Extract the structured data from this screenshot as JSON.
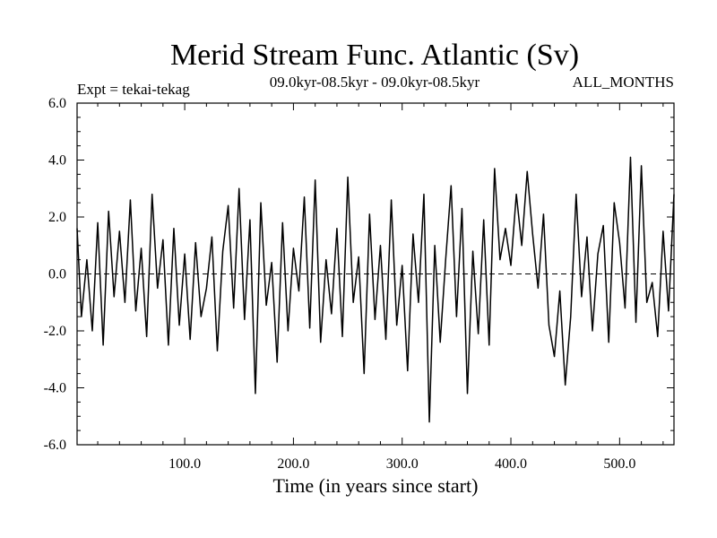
{
  "chart_data": {
    "type": "line",
    "title": "Merid Stream Func. Atlantic (Sv)",
    "subtitle": "09.0kyr-08.5kyr - 09.0kyr-08.5kyr",
    "left_note": "Expt = tekai-tekag",
    "right_note": "ALL_MONTHS",
    "xlabel": "Time (in years since start)",
    "ylabel": "",
    "xlim": [
      1,
      550
    ],
    "ylim": [
      -6,
      6
    ],
    "x_ticks": [
      {
        "value": 100,
        "label": "100.0"
      },
      {
        "value": 200,
        "label": "200.0"
      },
      {
        "value": 300,
        "label": "300.0"
      },
      {
        "value": 400,
        "label": "400.0"
      },
      {
        "value": 500,
        "label": "500.0"
      }
    ],
    "y_ticks": [
      {
        "value": 6,
        "label": "6.0"
      },
      {
        "value": 4,
        "label": "4.0"
      },
      {
        "value": 2,
        "label": "2.0"
      },
      {
        "value": 0,
        "label": "0.0"
      },
      {
        "value": -2,
        "label": "-2.0"
      },
      {
        "value": -4,
        "label": "-4.0"
      },
      {
        "value": -6,
        "label": "-6.0"
      }
    ],
    "zero_line": {
      "value": 0,
      "style": "dashed"
    },
    "series": [
      {
        "name": "Merid Stream Func. Atlantic",
        "x": [
          1,
          5,
          10,
          15,
          20,
          25,
          30,
          35,
          40,
          45,
          50,
          55,
          60,
          65,
          70,
          75,
          80,
          85,
          90,
          95,
          100,
          105,
          110,
          115,
          120,
          125,
          130,
          135,
          140,
          145,
          150,
          155,
          160,
          165,
          170,
          175,
          180,
          185,
          190,
          195,
          200,
          205,
          210,
          215,
          220,
          225,
          230,
          235,
          240,
          245,
          250,
          255,
          260,
          265,
          270,
          275,
          280,
          285,
          290,
          295,
          300,
          305,
          310,
          315,
          320,
          325,
          330,
          335,
          340,
          345,
          350,
          355,
          360,
          365,
          370,
          375,
          380,
          385,
          390,
          395,
          400,
          405,
          410,
          415,
          420,
          425,
          430,
          435,
          440,
          445,
          450,
          455,
          460,
          465,
          470,
          475,
          480,
          485,
          490,
          495,
          500,
          505,
          510,
          515,
          520,
          525,
          530,
          535,
          540,
          545,
          550
        ],
        "values": [
          1.6,
          -1.5,
          0.5,
          -2.0,
          1.8,
          -2.5,
          2.2,
          -0.8,
          1.5,
          -1.0,
          2.6,
          -1.3,
          0.9,
          -2.2,
          2.8,
          -0.5,
          1.2,
          -2.5,
          1.6,
          -1.8,
          0.7,
          -2.3,
          1.1,
          -1.5,
          -0.5,
          1.3,
          -2.7,
          0.8,
          2.4,
          -1.2,
          3.0,
          -1.6,
          1.9,
          -4.2,
          2.5,
          -1.1,
          0.4,
          -3.1,
          1.8,
          -2.0,
          0.9,
          -0.6,
          2.7,
          -1.9,
          3.3,
          -2.4,
          0.5,
          -1.4,
          1.6,
          -2.2,
          3.4,
          -1.0,
          0.6,
          -3.5,
          2.1,
          -1.6,
          1.0,
          -2.3,
          2.6,
          -1.8,
          0.3,
          -3.4,
          1.4,
          -1.0,
          2.8,
          -5.2,
          1.0,
          -2.4,
          0.5,
          3.1,
          -1.5,
          2.3,
          -4.2,
          0.8,
          -2.1,
          1.9,
          -2.5,
          3.7,
          0.5,
          1.6,
          0.3,
          2.8,
          1.0,
          3.6,
          1.4,
          -0.5,
          2.1,
          -1.8,
          -2.9,
          -0.6,
          -3.9,
          -1.5,
          2.8,
          -0.8,
          1.3,
          -2.0,
          0.7,
          1.7,
          -2.4,
          2.5,
          1.1,
          -1.2,
          4.1,
          -1.7,
          3.8,
          -1.0,
          -0.3,
          -2.2,
          1.5,
          -1.3,
          2.8
        ]
      }
    ]
  }
}
